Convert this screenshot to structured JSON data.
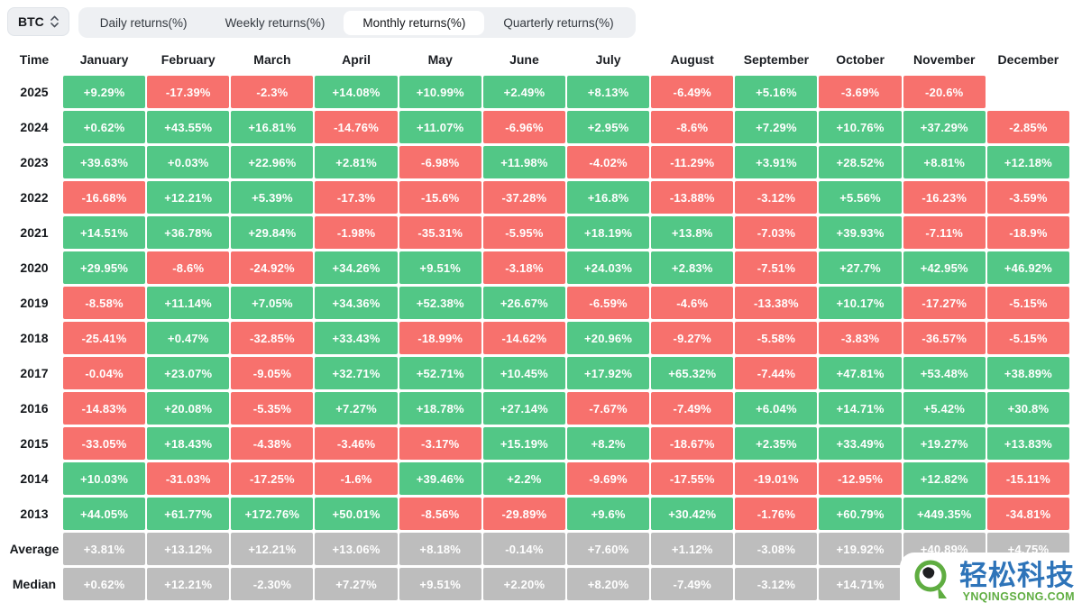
{
  "controls": {
    "asset_selector": {
      "label": "BTC",
      "icon": "sort-arrows-icon"
    },
    "tabs": [
      {
        "label": "Daily returns(%)",
        "active": false
      },
      {
        "label": "Weekly returns(%)",
        "active": false
      },
      {
        "label": "Monthly returns(%)",
        "active": true
      },
      {
        "label": "Quarterly returns(%)",
        "active": false
      }
    ]
  },
  "palette": {
    "positive": "#52C786",
    "negative": "#F7716D",
    "summary": "#BDBDBD",
    "logo_green": "#5FAD41",
    "logo_blue": "#2E74B9"
  },
  "table": {
    "time_header": "Time",
    "months": [
      "January",
      "February",
      "March",
      "April",
      "May",
      "June",
      "July",
      "August",
      "September",
      "October",
      "November",
      "December"
    ],
    "rows": [
      {
        "label": "2025",
        "type": "year",
        "values": [
          "+9.29%",
          "-17.39%",
          "-2.3%",
          "+14.08%",
          "+10.99%",
          "+2.49%",
          "+8.13%",
          "-6.49%",
          "+5.16%",
          "-3.69%",
          "-20.6%",
          null
        ]
      },
      {
        "label": "2024",
        "type": "year",
        "values": [
          "+0.62%",
          "+43.55%",
          "+16.81%",
          "-14.76%",
          "+11.07%",
          "-6.96%",
          "+2.95%",
          "-8.6%",
          "+7.29%",
          "+10.76%",
          "+37.29%",
          "-2.85%"
        ]
      },
      {
        "label": "2023",
        "type": "year",
        "values": [
          "+39.63%",
          "+0.03%",
          "+22.96%",
          "+2.81%",
          "-6.98%",
          "+11.98%",
          "-4.02%",
          "-11.29%",
          "+3.91%",
          "+28.52%",
          "+8.81%",
          "+12.18%"
        ]
      },
      {
        "label": "2022",
        "type": "year",
        "values": [
          "-16.68%",
          "+12.21%",
          "+5.39%",
          "-17.3%",
          "-15.6%",
          "-37.28%",
          "+16.8%",
          "-13.88%",
          "-3.12%",
          "+5.56%",
          "-16.23%",
          "-3.59%"
        ]
      },
      {
        "label": "2021",
        "type": "year",
        "values": [
          "+14.51%",
          "+36.78%",
          "+29.84%",
          "-1.98%",
          "-35.31%",
          "-5.95%",
          "+18.19%",
          "+13.8%",
          "-7.03%",
          "+39.93%",
          "-7.11%",
          "-18.9%"
        ]
      },
      {
        "label": "2020",
        "type": "year",
        "values": [
          "+29.95%",
          "-8.6%",
          "-24.92%",
          "+34.26%",
          "+9.51%",
          "-3.18%",
          "+24.03%",
          "+2.83%",
          "-7.51%",
          "+27.7%",
          "+42.95%",
          "+46.92%"
        ]
      },
      {
        "label": "2019",
        "type": "year",
        "values": [
          "-8.58%",
          "+11.14%",
          "+7.05%",
          "+34.36%",
          "+52.38%",
          "+26.67%",
          "-6.59%",
          "-4.6%",
          "-13.38%",
          "+10.17%",
          "-17.27%",
          "-5.15%"
        ]
      },
      {
        "label": "2018",
        "type": "year",
        "values": [
          "-25.41%",
          "+0.47%",
          "-32.85%",
          "+33.43%",
          "-18.99%",
          "-14.62%",
          "+20.96%",
          "-9.27%",
          "-5.58%",
          "-3.83%",
          "-36.57%",
          "-5.15%"
        ]
      },
      {
        "label": "2017",
        "type": "year",
        "values": [
          "-0.04%",
          "+23.07%",
          "-9.05%",
          "+32.71%",
          "+52.71%",
          "+10.45%",
          "+17.92%",
          "+65.32%",
          "-7.44%",
          "+47.81%",
          "+53.48%",
          "+38.89%"
        ]
      },
      {
        "label": "2016",
        "type": "year",
        "values": [
          "-14.83%",
          "+20.08%",
          "-5.35%",
          "+7.27%",
          "+18.78%",
          "+27.14%",
          "-7.67%",
          "-7.49%",
          "+6.04%",
          "+14.71%",
          "+5.42%",
          "+30.8%"
        ]
      },
      {
        "label": "2015",
        "type": "year",
        "values": [
          "-33.05%",
          "+18.43%",
          "-4.38%",
          "-3.46%",
          "-3.17%",
          "+15.19%",
          "+8.2%",
          "-18.67%",
          "+2.35%",
          "+33.49%",
          "+19.27%",
          "+13.83%"
        ]
      },
      {
        "label": "2014",
        "type": "year",
        "values": [
          "+10.03%",
          "-31.03%",
          "-17.25%",
          "-1.6%",
          "+39.46%",
          "+2.2%",
          "-9.69%",
          "-17.55%",
          "-19.01%",
          "-12.95%",
          "+12.82%",
          "-15.11%"
        ]
      },
      {
        "label": "2013",
        "type": "year",
        "values": [
          "+44.05%",
          "+61.77%",
          "+172.76%",
          "+50.01%",
          "-8.56%",
          "-29.89%",
          "+9.6%",
          "+30.42%",
          "-1.76%",
          "+60.79%",
          "+449.35%",
          "-34.81%"
        ]
      },
      {
        "label": "Average",
        "type": "summary",
        "values": [
          "+3.81%",
          "+13.12%",
          "+12.21%",
          "+13.06%",
          "+8.18%",
          "-0.14%",
          "+7.60%",
          "+1.12%",
          "-3.08%",
          "+19.92%",
          "+40.89%",
          "+4.75%"
        ]
      },
      {
        "label": "Median",
        "type": "summary",
        "values": [
          "+0.62%",
          "+12.21%",
          "-2.30%",
          "+7.27%",
          "+9.51%",
          "+2.20%",
          "+8.20%",
          "-7.49%",
          "-3.12%",
          "+14.71%",
          "",
          null
        ]
      }
    ]
  },
  "watermark": {
    "title": "轻松科技",
    "subtitle": "YNQINGSONG.COM"
  }
}
